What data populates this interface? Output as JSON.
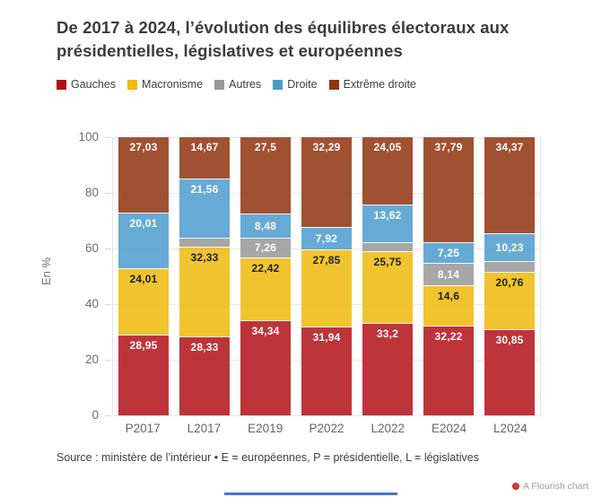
{
  "title": "De 2017 à 2024, l’évolution des équilibres électoraux aux présidentielles, législatives et européennes",
  "chart_data": {
    "type": "bar",
    "stacked": true,
    "title": "De 2017 à 2024, l’évolution des équilibres électoraux aux présidentielles, législatives et européennes",
    "ylabel": "En %",
    "xlabel": "",
    "ylim": [
      0,
      100
    ],
    "yticks": [
      0,
      20,
      40,
      60,
      80,
      100
    ],
    "grid": true,
    "legend_position": "top",
    "bar_fill_opacity": 0.85,
    "categories": [
      "P2017",
      "L2017",
      "E2019",
      "P2022",
      "L2022",
      "E2024",
      "L2024"
    ],
    "series": [
      {
        "name": "Gauches",
        "color": "#b21118",
        "label_color": "#ffffff",
        "values": [
          28.95,
          28.33,
          34.34,
          31.94,
          33.2,
          32.22,
          30.85
        ],
        "labels": [
          "28,95",
          "28,33",
          "34,34",
          "31,94",
          "33,2",
          "32,22",
          "30,85"
        ]
      },
      {
        "name": "Macronisme",
        "color": "#eeba0b",
        "label_color": "#1e1e1e",
        "values": [
          24.01,
          32.33,
          22.42,
          27.85,
          25.75,
          14.6,
          20.76
        ],
        "labels": [
          "24,01",
          "32,33",
          "22,42",
          "27,85",
          "25,75",
          "14,6",
          "20,76"
        ]
      },
      {
        "name": "Autres",
        "color": "#989898",
        "label_color": "#ffffff",
        "values": [
          0,
          3.11,
          7.26,
          0,
          3.38,
          8.14,
          3.79
        ],
        "labels": [
          "",
          "",
          "7,26",
          "",
          "",
          "8,14",
          ""
        ]
      },
      {
        "name": "Droite",
        "color": "#4b9bce",
        "label_color": "#ffffff",
        "values": [
          20.01,
          21.56,
          8.48,
          7.92,
          13.62,
          7.25,
          10.23
        ],
        "labels": [
          "20,01",
          "21,56",
          "8,48",
          "7,92",
          "13,62",
          "7,25",
          "10,23"
        ]
      },
      {
        "name": "Extrême droite",
        "color": "#8f330e",
        "label_color": "#ffffff",
        "values": [
          27.03,
          14.67,
          27.5,
          32.29,
          24.05,
          37.79,
          34.37
        ],
        "labels": [
          "27,03",
          "14,67",
          "27,5",
          "32,29",
          "24,05",
          "37,79",
          "34,37"
        ]
      }
    ]
  },
  "footer": {
    "source": "Source : ministère de l’intérieur • E = européennes, P = présidentielle, L = législatives",
    "attribution": "A Flourish chart"
  }
}
